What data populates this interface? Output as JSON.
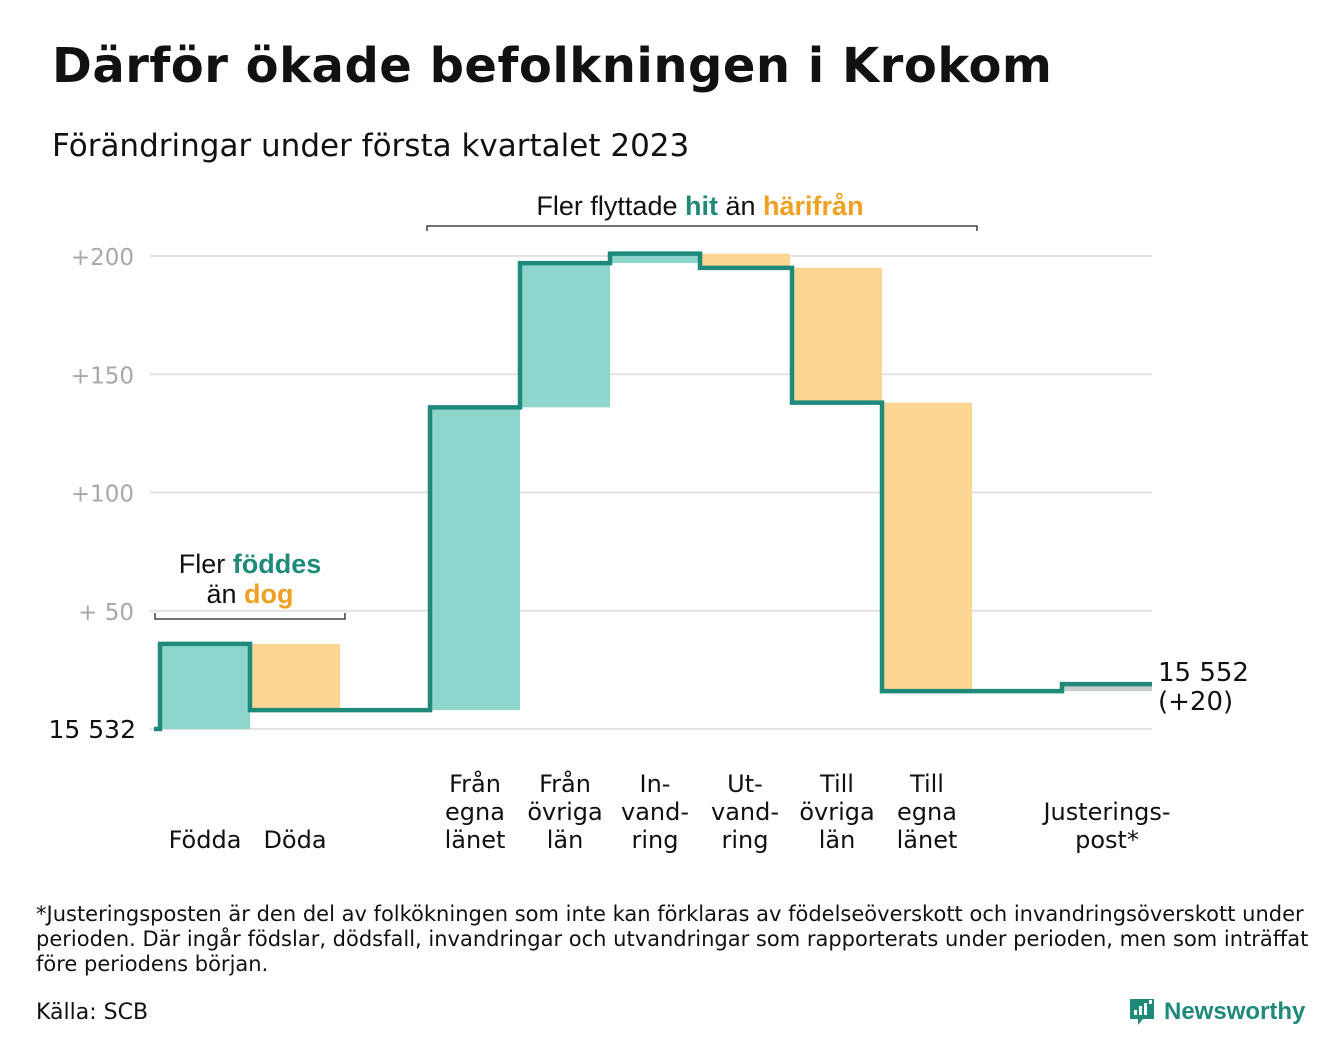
{
  "title": "Därför ökade befolkningen i Krokom",
  "subtitle": "Förändringar under första kvartalet 2023",
  "chart_data": {
    "type": "waterfall",
    "start": {
      "label": "15 532",
      "value": 0
    },
    "end": {
      "label": "15 552",
      "change_label": "(+20)",
      "value": 20
    },
    "y_ticks": [
      "+200",
      "+150",
      "+100",
      "+ 50"
    ],
    "ylim": [
      0,
      200
    ],
    "grid": true,
    "steps": [
      {
        "label": [
          "Födda"
        ],
        "change": 36,
        "kind": "in",
        "color": "#8ed6cb"
      },
      {
        "label": [
          "Döda"
        ],
        "change": -28,
        "kind": "out",
        "color": "#fcd692"
      },
      {
        "label": [
          "Från",
          "egna",
          "länet"
        ],
        "change": 128,
        "kind": "in",
        "color": "#8ed6cb"
      },
      {
        "label": [
          "Från",
          "övriga",
          "län"
        ],
        "change": 61,
        "kind": "in",
        "color": "#8ed6cb"
      },
      {
        "label": [
          "In-",
          "vand-",
          "ring"
        ],
        "change": 4,
        "kind": "in",
        "color": "#8ed6cb"
      },
      {
        "label": [
          "Ut-",
          "vand-",
          "ring"
        ],
        "change": -6,
        "kind": "out",
        "color": "#fcd692"
      },
      {
        "label": [
          "Till",
          "övriga",
          "län"
        ],
        "change": -57,
        "kind": "out",
        "color": "#fcd692"
      },
      {
        "label": [
          "Till",
          "egna",
          "länet"
        ],
        "change": -122,
        "kind": "out",
        "color": "#fcd692"
      },
      {
        "label": [
          "Justerings-",
          "post*"
        ],
        "change": 3,
        "kind": "adjust",
        "color": "#c9cdcc"
      }
    ],
    "annotations": [
      {
        "parts": [
          {
            "text": "Fler ",
            "color": "#111111"
          },
          {
            "text": "föddes",
            "color": "#1f8a7a",
            "bold": true
          }
        ],
        "parts2": [
          {
            "text": "än ",
            "color": "#111111"
          },
          {
            "text": "dog",
            "color": "#f0a020",
            "bold": true
          }
        ]
      },
      {
        "parts": [
          {
            "text": "Fler flyttade ",
            "color": "#111111"
          },
          {
            "text": "hit",
            "color": "#1f8a7a",
            "bold": true
          },
          {
            "text": " än ",
            "color": "#111111"
          },
          {
            "text": "härifrån",
            "color": "#f0a020",
            "bold": true
          }
        ]
      }
    ],
    "colors": {
      "line": "#1f8a7a",
      "in": "#8ed6cb",
      "out": "#fcd692",
      "adjust": "#c9cdcc",
      "grid": "#e2e2e2",
      "tick": "#a8a8a8"
    }
  },
  "footnote": "*Justeringsposten är den del av folkökningen som inte kan förklaras av födelseöverskott och invandringsöverskott under perioden. Där ingår födslar, dödsfall, invandringar och utvandringar som rapporterats under perioden, men som inträffat före periodens början.",
  "source": "Källa: SCB",
  "brand": {
    "name": "Newsworthy",
    "icon": "newsworthy-logo-icon",
    "color": "#1f8a7a"
  }
}
